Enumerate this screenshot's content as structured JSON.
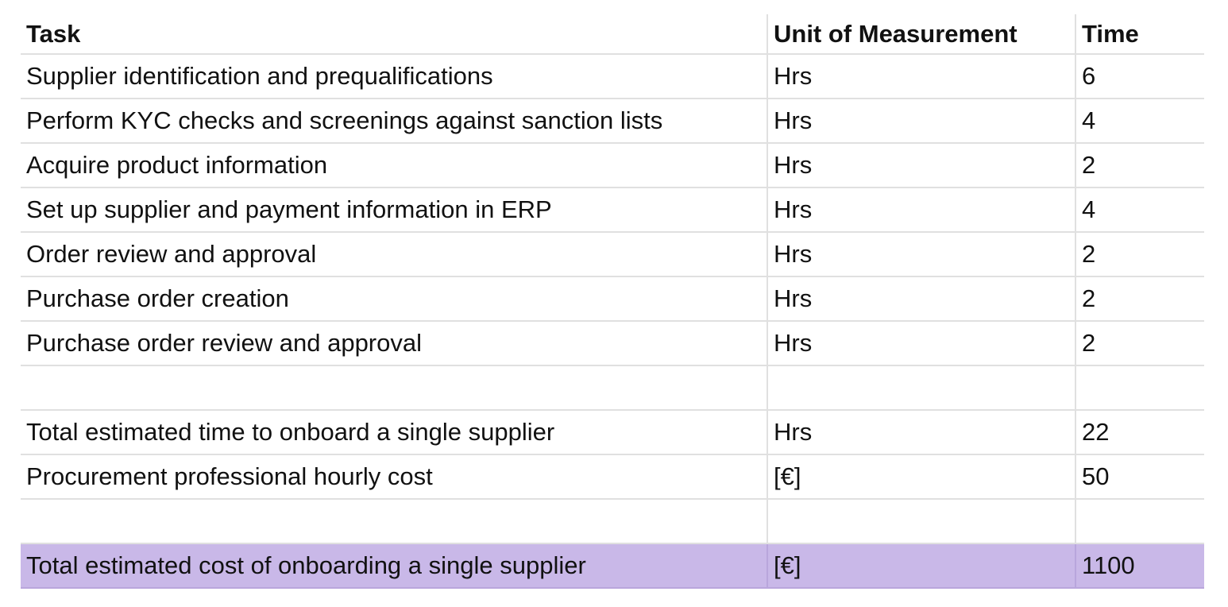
{
  "table": {
    "header": [
      "Task",
      "Unit of Measurement",
      "Time"
    ],
    "task_rows": [
      [
        "Supplier identification and prequalifications",
        "Hrs",
        6
      ],
      [
        "Perform KYC checks and screenings against sanction lists",
        "Hrs",
        4
      ],
      [
        "Acquire product information",
        "Hrs",
        2
      ],
      [
        "Set up supplier and payment information in ERP",
        "Hrs",
        4
      ],
      [
        "Order review and approval",
        "Hrs",
        2
      ],
      [
        "Purchase order creation",
        "Hrs",
        2
      ],
      [
        "Purchase order review and approval",
        "Hrs",
        2
      ]
    ],
    "summary_rows": [
      [
        "Total estimated time to onboard a single supplier",
        "Hrs",
        22
      ],
      [
        "Procurement professional hourly cost",
        "[€]",
        50
      ]
    ],
    "total_row": [
      "Total estimated cost of onboarding a single supplier",
      "[€]",
      1100
    ]
  }
}
